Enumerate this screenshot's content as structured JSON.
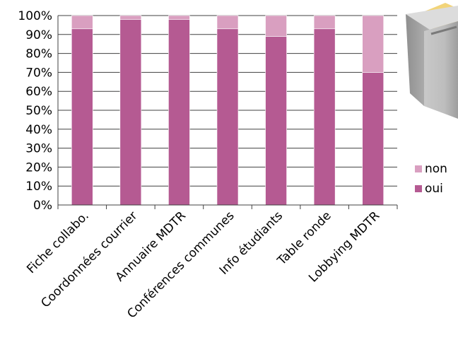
{
  "chart_data": {
    "type": "bar",
    "stacked": true,
    "percent": true,
    "categories": [
      "Fiche collabo.",
      "Coordonnées courrier",
      "Annuaire MDTR",
      "Conférences communes",
      "Info étudiants",
      "Table ronde",
      "Lobbying MDTR"
    ],
    "series": [
      {
        "name": "oui",
        "color": "#b55a92",
        "values": [
          93,
          98,
          98,
          93,
          89,
          93,
          70
        ]
      },
      {
        "name": "non",
        "color": "#d99fc0",
        "values": [
          7,
          2,
          2,
          7,
          11,
          7,
          30
        ]
      }
    ],
    "yticks": [
      "0%",
      "10%",
      "20%",
      "30%",
      "40%",
      "50%",
      "60%",
      "70%",
      "80%",
      "90%",
      "100%"
    ],
    "ylim": [
      0,
      100
    ],
    "legend_position": "right",
    "grid": true
  },
  "decoration": {
    "icon": "ballot-box-icon"
  }
}
